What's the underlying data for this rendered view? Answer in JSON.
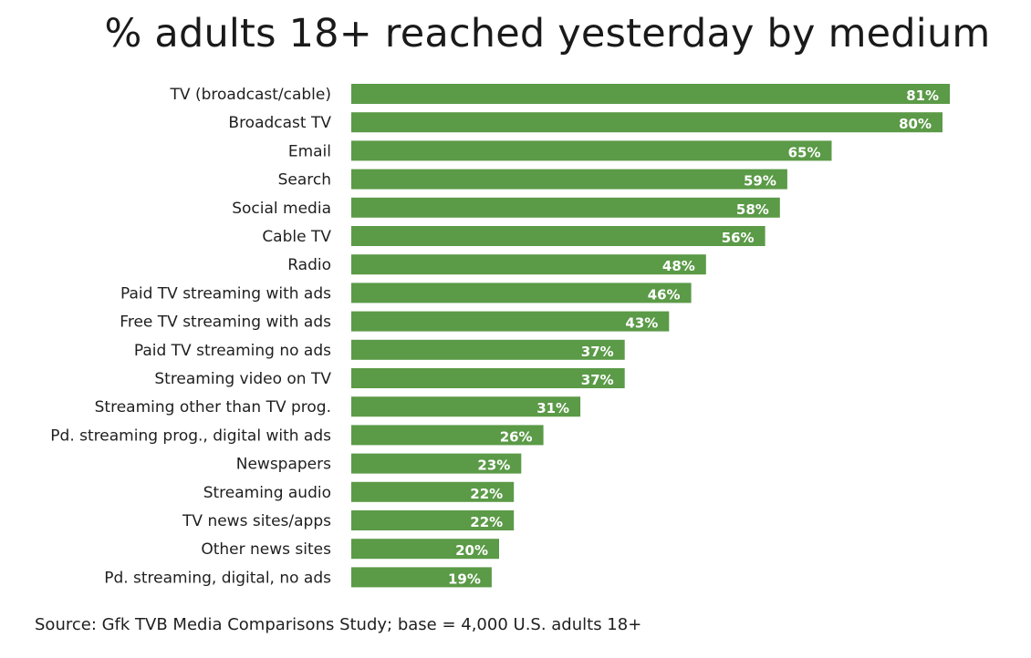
{
  "chart_data": {
    "type": "bar",
    "orientation": "horizontal",
    "title": "% adults 18+ reached yesterday by medium",
    "categories": [
      "TV (broadcast/cable)",
      "Broadcast TV",
      "Email",
      "Search",
      "Social media",
      "Cable TV",
      "Radio",
      "Paid TV streaming with ads",
      "Free TV streaming with ads",
      "Paid TV streaming no ads",
      "Streaming video on TV",
      "Streaming other than TV prog.",
      "Pd. streaming prog., digital with ads",
      "Newspapers",
      "Streaming audio",
      "TV news sites/apps",
      "Other news sites",
      "Pd. streaming, digital, no ads"
    ],
    "values": [
      81,
      80,
      65,
      59,
      58,
      56,
      48,
      46,
      43,
      37,
      37,
      31,
      26,
      23,
      22,
      22,
      20,
      19
    ],
    "value_labels": [
      "81%",
      "80%",
      "65%",
      "59%",
      "58%",
      "56%",
      "48%",
      "46%",
      "43%",
      "37%",
      "37%",
      "31%",
      "26%",
      "23%",
      "22%",
      "22%",
      "20%",
      "19%"
    ],
    "xlim": [
      0,
      100
    ],
    "grid": false,
    "legend": "none",
    "bar_color": "#5b9a47",
    "source": "Source: Gfk TVB Media Comparisons Study; base = 4,000 U.S. adults 18+"
  }
}
